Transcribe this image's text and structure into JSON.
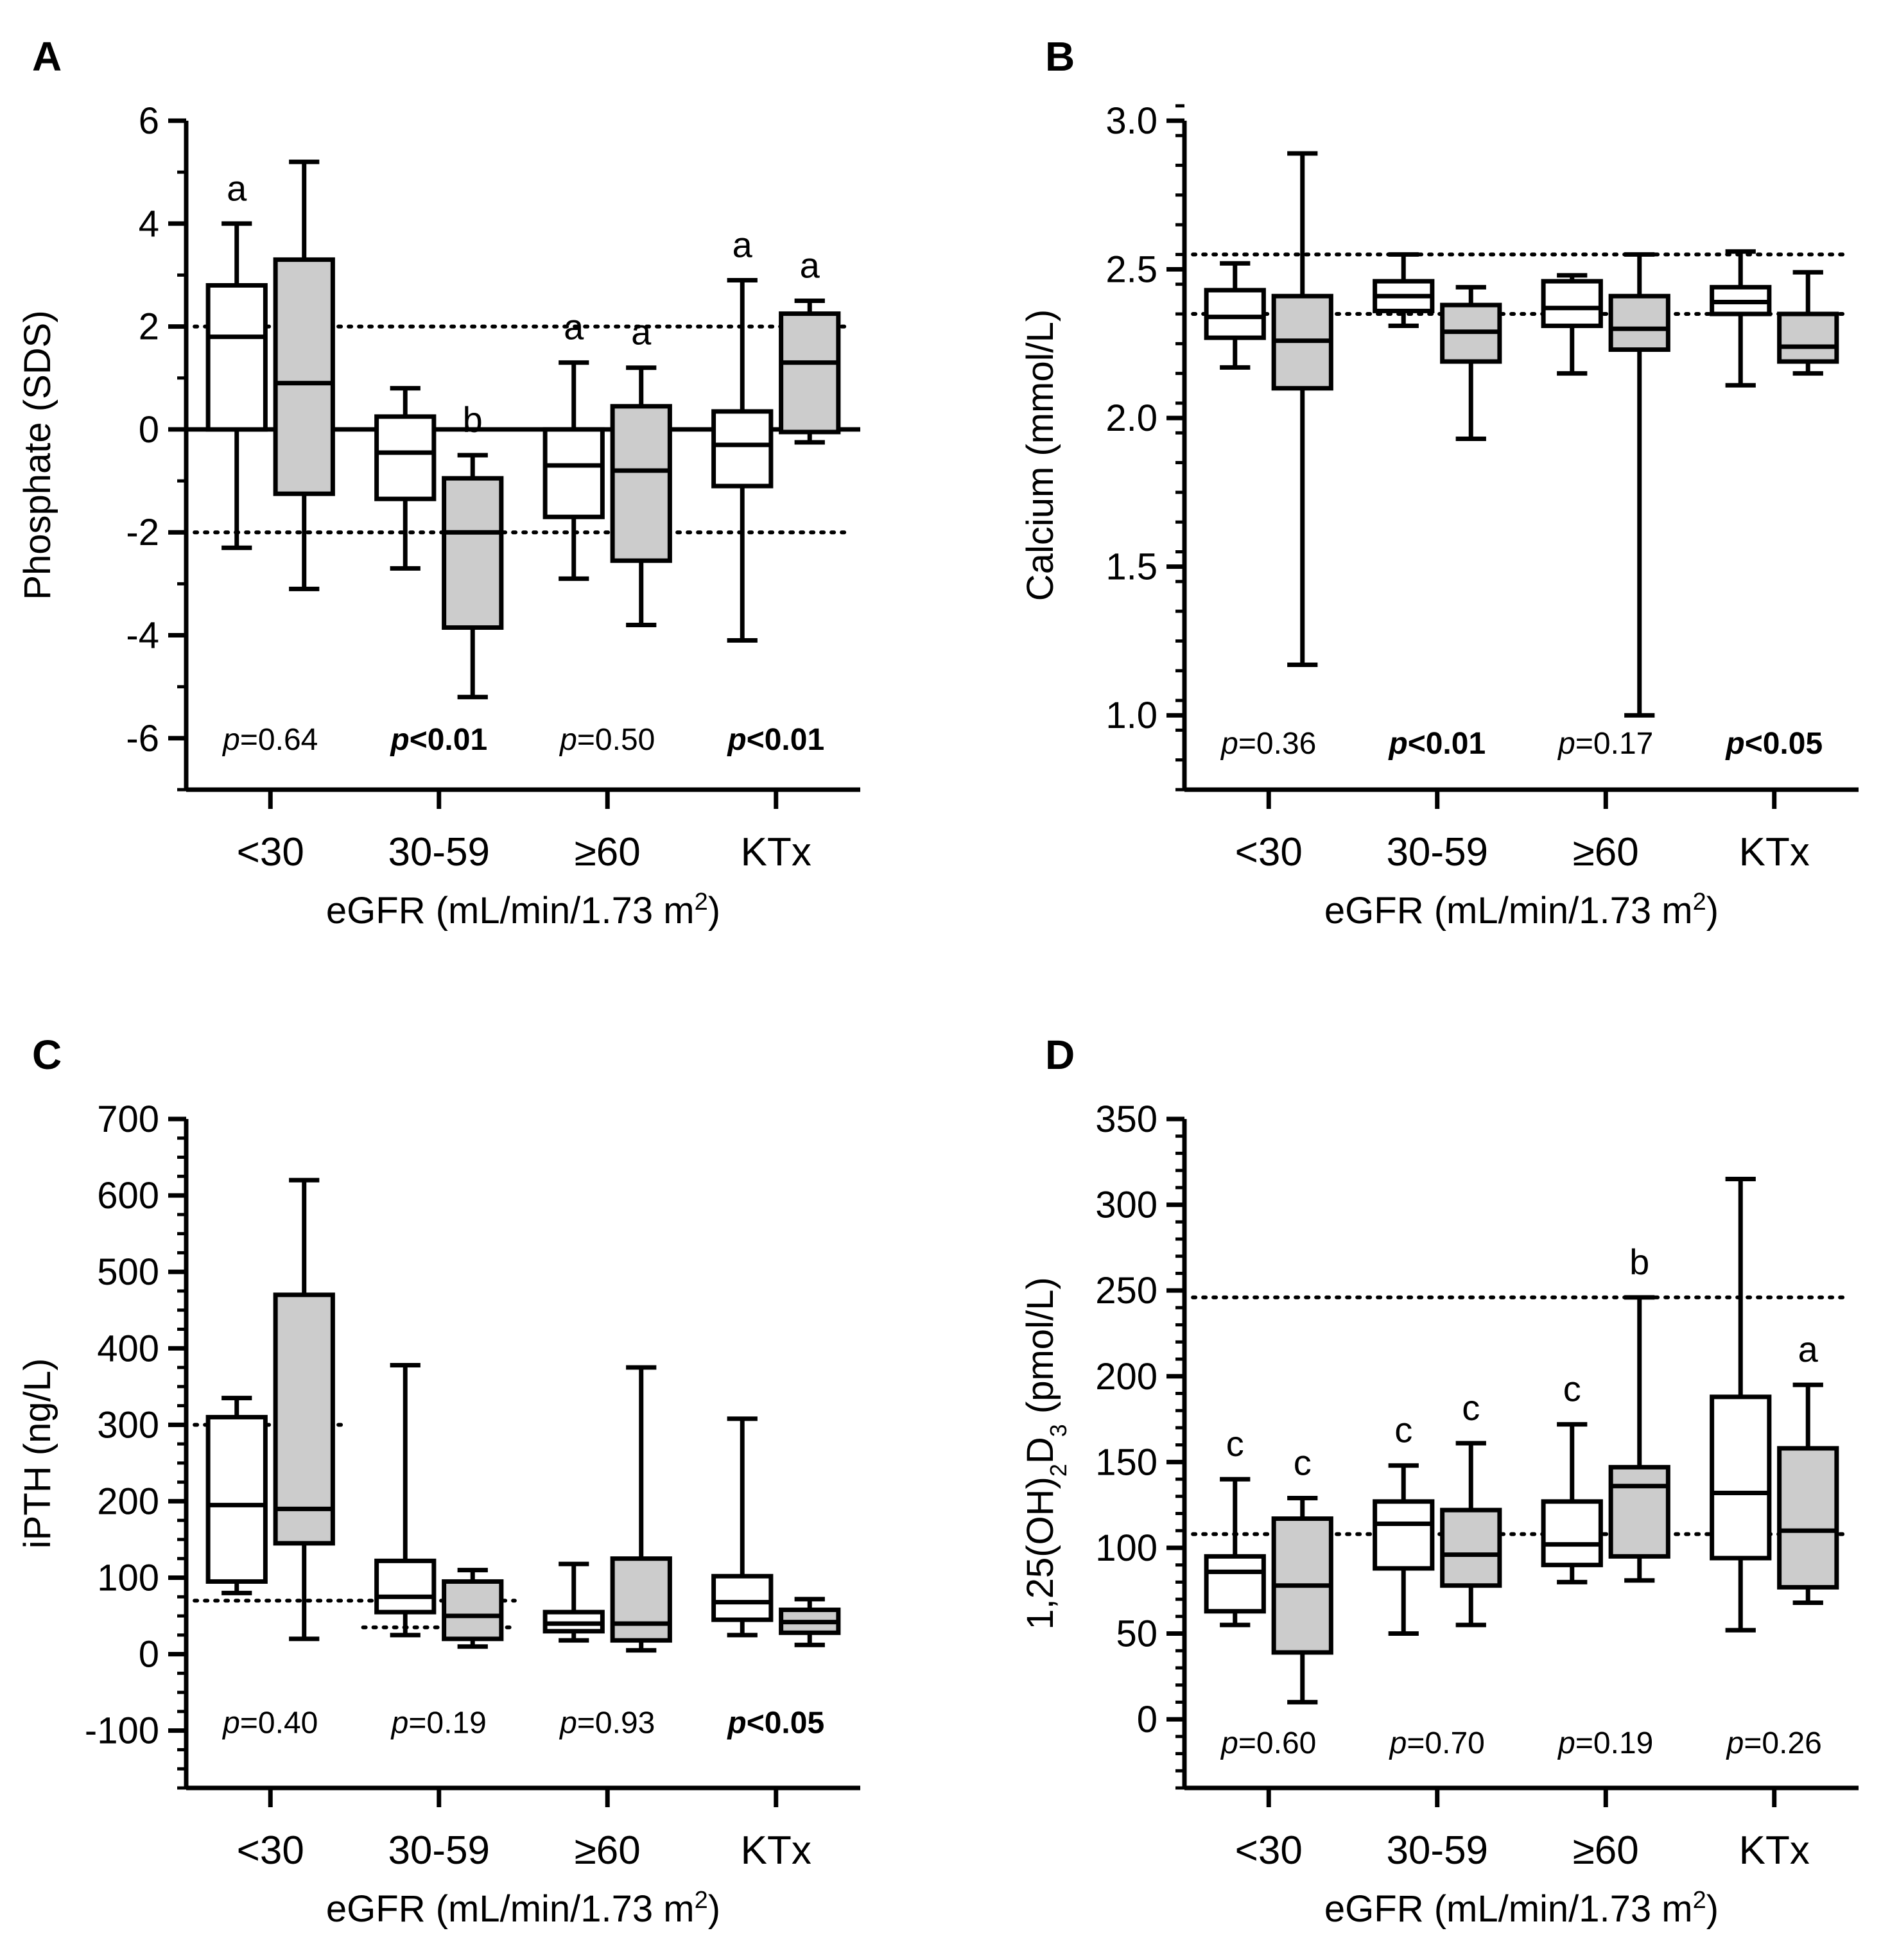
{
  "figure": {
    "background": "#ffffff",
    "box_fill_gray": "#cccccc",
    "box_fill_white": "#ffffff",
    "stroke": "#000000"
  },
  "chart_data": [
    {
      "panel": "A",
      "type": "box",
      "ylabel": "Phosphate (SDS)",
      "ylabel_html": "Phosphate (SDS)",
      "xlabel": "eGFR (mL/min/1.73 m2)",
      "categories": [
        "<30",
        "30-59",
        "≥60",
        "KTx"
      ],
      "ylim": [
        -7,
        6
      ],
      "ticks": [
        6,
        4,
        2,
        0,
        -2,
        -4,
        -6
      ],
      "tick_labels": [
        "6",
        "4",
        "2",
        "0",
        "-2",
        "-4",
        "-6"
      ],
      "minor_step": 1,
      "zero_line": true,
      "ref_lines": [
        {
          "y": 2,
          "x_from": 0.55,
          "x_to": 4.45
        },
        {
          "y": -2,
          "x_from": 0.55,
          "x_to": 4.45
        }
      ],
      "pvalues": [
        {
          "text": "=0.64",
          "bold": false
        },
        {
          "text": "<0.01",
          "bold": true
        },
        {
          "text": "=0.50",
          "bold": false
        },
        {
          "text": "<0.01",
          "bold": true
        }
      ],
      "pvalue_y": -6,
      "boxes": [
        {
          "cat": 0,
          "fill": "white",
          "min": -2.3,
          "q1": 0,
          "median": 1.8,
          "q3": 2.8,
          "max": 4.0,
          "letter": "a"
        },
        {
          "cat": 0,
          "fill": "gray",
          "min": -3.1,
          "q1": -1.25,
          "median": 0.9,
          "q3": 3.3,
          "max": 5.2,
          "letter": ""
        },
        {
          "cat": 1,
          "fill": "white",
          "min": -2.7,
          "q1": -1.35,
          "median": -0.45,
          "q3": 0.25,
          "max": 0.8,
          "letter": ""
        },
        {
          "cat": 1,
          "fill": "gray",
          "min": -5.2,
          "q1": -3.85,
          "median": -2.0,
          "q3": -0.95,
          "max": -0.5,
          "letter": "b"
        },
        {
          "cat": 2,
          "fill": "white",
          "min": -2.9,
          "q1": -1.7,
          "median": -0.7,
          "q3": 0,
          "max": 1.3,
          "letter": "a"
        },
        {
          "cat": 2,
          "fill": "gray",
          "min": -3.8,
          "q1": -2.55,
          "median": -0.8,
          "q3": 0.45,
          "max": 1.2,
          "letter": "a"
        },
        {
          "cat": 3,
          "fill": "white",
          "min": -4.1,
          "q1": -1.1,
          "median": -0.3,
          "q3": 0.35,
          "max": 2.9,
          "letter": "a"
        },
        {
          "cat": 3,
          "fill": "gray",
          "min": -0.25,
          "q1": -0.05,
          "median": 1.3,
          "q3": 2.25,
          "max": 2.5,
          "letter": "a"
        }
      ]
    },
    {
      "panel": "B",
      "type": "box",
      "ylabel": "Calcium (mmol/L)",
      "ylabel_html": "Calcium (mmol/L)",
      "xlabel": "eGFR (mL/min/1.73 m2)",
      "categories": [
        "<30",
        "30-59",
        "≥60",
        "KTx"
      ],
      "ylim": [
        0.75,
        3.0
      ],
      "ticks": [
        3.0,
        2.5,
        2.0,
        1.5,
        1.0
      ],
      "tick_labels": [
        "3.0",
        "2.5",
        "2.0",
        "1.5",
        "1.0"
      ],
      "minor_step": 0.1,
      "zero_line": false,
      "ref_lines": [
        {
          "y": 2.55,
          "x_from": 0.55,
          "x_to": 4.45
        },
        {
          "y": 2.35,
          "x_from": 0.55,
          "x_to": 4.45
        }
      ],
      "pvalues": [
        {
          "text": "=0.36",
          "bold": false
        },
        {
          "text": "<0.01",
          "bold": true
        },
        {
          "text": "=0.17",
          "bold": false
        },
        {
          "text": "<0.05",
          "bold": true
        }
      ],
      "pvalue_y": 0.91,
      "boxes": [
        {
          "cat": 0,
          "fill": "white",
          "min": 2.17,
          "q1": 2.27,
          "median": 2.34,
          "q3": 2.43,
          "max": 2.52,
          "letter": ""
        },
        {
          "cat": 0,
          "fill": "gray",
          "min": 1.17,
          "q1": 2.1,
          "median": 2.26,
          "q3": 2.41,
          "max": 2.89,
          "letter": ""
        },
        {
          "cat": 1,
          "fill": "white",
          "min": 2.31,
          "q1": 2.36,
          "median": 2.41,
          "q3": 2.46,
          "max": 2.55,
          "letter": ""
        },
        {
          "cat": 1,
          "fill": "gray",
          "min": 1.93,
          "q1": 2.19,
          "median": 2.29,
          "q3": 2.38,
          "max": 2.44,
          "letter": ""
        },
        {
          "cat": 2,
          "fill": "white",
          "min": 2.15,
          "q1": 2.31,
          "median": 2.37,
          "q3": 2.46,
          "max": 2.48,
          "letter": ""
        },
        {
          "cat": 2,
          "fill": "gray",
          "min": 1.0,
          "q1": 2.23,
          "median": 2.3,
          "q3": 2.41,
          "max": 2.55,
          "letter": ""
        },
        {
          "cat": 3,
          "fill": "white",
          "min": 2.11,
          "q1": 2.35,
          "median": 2.39,
          "q3": 2.44,
          "max": 2.56,
          "letter": ""
        },
        {
          "cat": 3,
          "fill": "gray",
          "min": 2.15,
          "q1": 2.19,
          "median": 2.24,
          "q3": 2.35,
          "max": 2.49,
          "letter": ""
        }
      ]
    },
    {
      "panel": "C",
      "type": "box",
      "ylabel": "iPTH (ng/L)",
      "ylabel_html": "iPTH (ng/L)",
      "xlabel": "eGFR (mL/min/1.73 m2)",
      "categories": [
        "<30",
        "30-59",
        "≥60",
        "KTx"
      ],
      "ylim": [
        -175,
        700
      ],
      "ticks": [
        700,
        600,
        500,
        400,
        300,
        200,
        100,
        0,
        -100
      ],
      "tick_labels": [
        "700",
        "600",
        "500",
        "400",
        "300",
        "200",
        "100",
        "0",
        "-100"
      ],
      "minor_step": 25,
      "zero_line": false,
      "ref_lines": [
        {
          "y": 300,
          "x_from": 0.55,
          "x_to": 1.45
        },
        {
          "y": 70,
          "x_from": 0.55,
          "x_to": 2.45
        },
        {
          "y": 35,
          "x_from": 1.55,
          "x_to": 2.45
        }
      ],
      "pvalues": [
        {
          "text": "=0.40",
          "bold": false
        },
        {
          "text": "=0.19",
          "bold": false
        },
        {
          "text": "=0.93",
          "bold": false
        },
        {
          "text": "<0.05",
          "bold": true
        }
      ],
      "pvalue_y": -88,
      "boxes": [
        {
          "cat": 0,
          "fill": "white",
          "min": 80,
          "q1": 95,
          "median": 195,
          "q3": 310,
          "max": 335,
          "letter": ""
        },
        {
          "cat": 0,
          "fill": "gray",
          "min": 20,
          "q1": 145,
          "median": 190,
          "q3": 470,
          "max": 620,
          "letter": ""
        },
        {
          "cat": 1,
          "fill": "white",
          "min": 25,
          "q1": 55,
          "median": 75,
          "q3": 122,
          "max": 378,
          "letter": ""
        },
        {
          "cat": 1,
          "fill": "gray",
          "min": 10,
          "q1": 20,
          "median": 50,
          "q3": 95,
          "max": 110,
          "letter": ""
        },
        {
          "cat": 2,
          "fill": "white",
          "min": 18,
          "q1": 30,
          "median": 40,
          "q3": 55,
          "max": 118,
          "letter": ""
        },
        {
          "cat": 2,
          "fill": "gray",
          "min": 5,
          "q1": 18,
          "median": 40,
          "q3": 125,
          "max": 375,
          "letter": ""
        },
        {
          "cat": 3,
          "fill": "white",
          "min": 25,
          "q1": 45,
          "median": 68,
          "q3": 102,
          "max": 308,
          "letter": ""
        },
        {
          "cat": 3,
          "fill": "gray",
          "min": 12,
          "q1": 28,
          "median": 42,
          "q3": 58,
          "max": 72,
          "letter": ""
        }
      ]
    },
    {
      "panel": "D",
      "type": "box",
      "ylabel": "1,25(OH)2D3 (pmol/L)",
      "ylabel_html": "1,25(OH)<tspan baseline-shift=\"sub\" font-size=\"36\">2</tspan>D<tspan baseline-shift=\"sub\" font-size=\"36\">3</tspan> (pmol/L)",
      "xlabel": "eGFR (mL/min/1.73 m2)",
      "categories": [
        "<30",
        "30-59",
        "≥60",
        "KTx"
      ],
      "ylim": [
        -40,
        350
      ],
      "ticks": [
        350,
        300,
        250,
        200,
        150,
        100,
        50,
        0
      ],
      "tick_labels": [
        "350",
        "300",
        "250",
        "200",
        "150",
        "100",
        "50",
        "0"
      ],
      "minor_step": 10,
      "zero_line": false,
      "ref_lines": [
        {
          "y": 246,
          "x_from": 0.55,
          "x_to": 4.45
        },
        {
          "y": 108,
          "x_from": 0.55,
          "x_to": 4.45
        }
      ],
      "pvalues": [
        {
          "text": "=0.60",
          "bold": false
        },
        {
          "text": "=0.70",
          "bold": false
        },
        {
          "text": "=0.19",
          "bold": false
        },
        {
          "text": "=0.26",
          "bold": false
        }
      ],
      "pvalue_y": -13,
      "boxes": [
        {
          "cat": 0,
          "fill": "white",
          "min": 55,
          "q1": 63,
          "median": 86,
          "q3": 95,
          "max": 140,
          "letter": "c"
        },
        {
          "cat": 0,
          "fill": "gray",
          "min": 10,
          "q1": 39,
          "median": 78,
          "q3": 117,
          "max": 129,
          "letter": "c"
        },
        {
          "cat": 1,
          "fill": "white",
          "min": 50,
          "q1": 88,
          "median": 114,
          "q3": 127,
          "max": 148,
          "letter": "c"
        },
        {
          "cat": 1,
          "fill": "gray",
          "min": 55,
          "q1": 78,
          "median": 96,
          "q3": 122,
          "max": 161,
          "letter": "c"
        },
        {
          "cat": 2,
          "fill": "white",
          "min": 80,
          "q1": 90,
          "median": 102,
          "q3": 127,
          "max": 172,
          "letter": "c"
        },
        {
          "cat": 2,
          "fill": "gray",
          "min": 81,
          "q1": 95,
          "median": 136,
          "q3": 147,
          "max": 246,
          "letter": "b"
        },
        {
          "cat": 3,
          "fill": "white",
          "min": 52,
          "q1": 94,
          "median": 132,
          "q3": 188,
          "max": 315,
          "letter": ""
        },
        {
          "cat": 3,
          "fill": "gray",
          "min": 68,
          "q1": 77,
          "median": 110,
          "q3": 158,
          "max": 195,
          "letter": "a"
        }
      ]
    }
  ]
}
